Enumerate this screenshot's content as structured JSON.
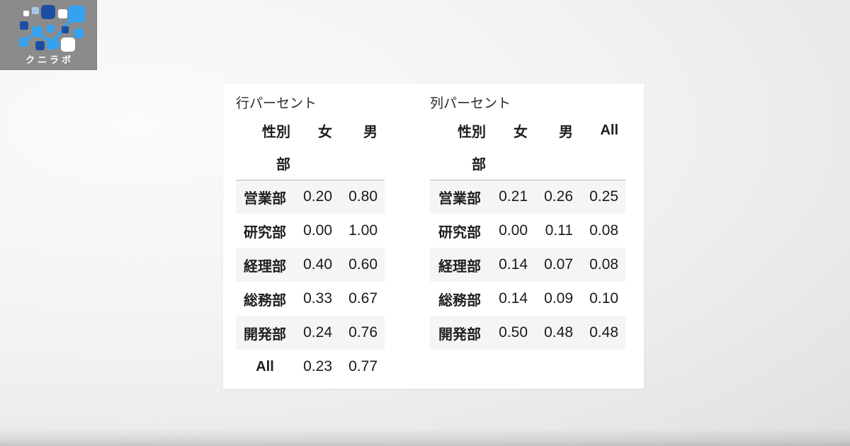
{
  "logo": {
    "text": "クニラボ",
    "colors": {
      "box_bg": "#8b8b8b",
      "blue": "#35a1f0",
      "navy": "#1c4ea1",
      "white": "#ffffff",
      "pale_blue": "#a9c6e9"
    }
  },
  "card": {
    "bg": "#ffffff",
    "stripe": "#f5f5f5",
    "tables": [
      {
        "title": "行パーセント",
        "columns_name": "性別",
        "index_name": "部",
        "columns": [
          "女",
          "男"
        ],
        "rows": [
          {
            "label": "営業部",
            "values": [
              "0.20",
              "0.80"
            ]
          },
          {
            "label": "研究部",
            "values": [
              "0.00",
              "1.00"
            ]
          },
          {
            "label": "経理部",
            "values": [
              "0.40",
              "0.60"
            ]
          },
          {
            "label": "総務部",
            "values": [
              "0.33",
              "0.67"
            ]
          },
          {
            "label": "開発部",
            "values": [
              "0.24",
              "0.76"
            ]
          },
          {
            "label": "All",
            "values": [
              "0.23",
              "0.77"
            ]
          }
        ]
      },
      {
        "title": "列パーセント",
        "columns_name": "性別",
        "index_name": "部",
        "columns": [
          "女",
          "男",
          "All"
        ],
        "rows": [
          {
            "label": "営業部",
            "values": [
              "0.21",
              "0.26",
              "0.25"
            ]
          },
          {
            "label": "研究部",
            "values": [
              "0.00",
              "0.11",
              "0.08"
            ]
          },
          {
            "label": "経理部",
            "values": [
              "0.14",
              "0.07",
              "0.08"
            ]
          },
          {
            "label": "総務部",
            "values": [
              "0.14",
              "0.09",
              "0.10"
            ]
          },
          {
            "label": "開発部",
            "values": [
              "0.50",
              "0.48",
              "0.48"
            ]
          }
        ]
      }
    ]
  }
}
